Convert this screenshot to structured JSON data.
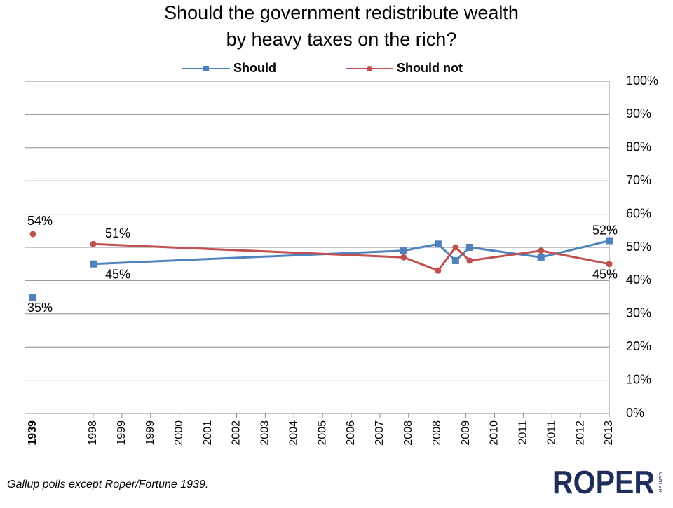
{
  "chart_data": {
    "type": "line",
    "title": [
      "Should the government redistribute wealth",
      "by heavy taxes on the rich?"
    ],
    "xticks": [
      {
        "value": 0,
        "label": "1998"
      },
      {
        "value": 1,
        "label": "1999"
      },
      {
        "value": 2,
        "label": "1999"
      },
      {
        "value": 3,
        "label": "2000"
      },
      {
        "value": 4,
        "label": "2001"
      },
      {
        "value": 5,
        "label": "2002"
      },
      {
        "value": 6,
        "label": "2003"
      },
      {
        "value": 7,
        "label": "2004"
      },
      {
        "value": 8,
        "label": "2005"
      },
      {
        "value": 9,
        "label": "2006"
      },
      {
        "value": 10,
        "label": "2007"
      },
      {
        "value": 11,
        "label": "2008"
      },
      {
        "value": 12,
        "label": "2008"
      },
      {
        "value": 13,
        "label": "2009"
      },
      {
        "value": 14,
        "label": "2010"
      },
      {
        "value": 15,
        "label": "2011"
      },
      {
        "value": 16,
        "label": "2011"
      },
      {
        "value": 17,
        "label": "2012"
      },
      {
        "value": 18,
        "label": "2013"
      }
    ],
    "xlim": [
      0,
      18
    ],
    "x": [
      0,
      10.83,
      12.03,
      12.64,
      13.13,
      15.62,
      18
    ],
    "ylim": [
      0,
      100
    ],
    "yticks": [
      {
        "value": 0,
        "label": "0%"
      },
      {
        "value": 10,
        "label": "10%"
      },
      {
        "value": 20,
        "label": "20%"
      },
      {
        "value": 30,
        "label": "30%"
      },
      {
        "value": 40,
        "label": "40%"
      },
      {
        "value": 50,
        "label": "50%"
      },
      {
        "value": 60,
        "label": "60%"
      },
      {
        "value": 70,
        "label": "70%"
      },
      {
        "value": 80,
        "label": "80%"
      },
      {
        "value": 90,
        "label": "90%"
      },
      {
        "value": 100,
        "label": "100%"
      }
    ],
    "grid": true,
    "series": [
      {
        "name": "Should",
        "color": "#4f81bd",
        "marker": "square",
        "values": [
          45,
          49,
          51,
          46,
          50,
          47,
          52
        ],
        "value_labels": [
          "45%",
          null,
          null,
          null,
          null,
          null,
          "52%"
        ]
      },
      {
        "name": "Should not",
        "color": "#c0504d",
        "marker": "circle",
        "values": [
          51,
          47,
          43,
          50,
          46,
          49,
          45
        ],
        "value_labels": [
          "51%",
          null,
          null,
          null,
          null,
          null,
          "45%"
        ]
      }
    ],
    "separate_point": {
      "label": "1939",
      "values": [
        35,
        54
      ],
      "value_labels": [
        "35%",
        "54%"
      ]
    },
    "footnote": "Gallup polls except Roper/Fortune 1939.",
    "logo": {
      "text": "ROPER",
      "subtext": "CENTER"
    }
  }
}
